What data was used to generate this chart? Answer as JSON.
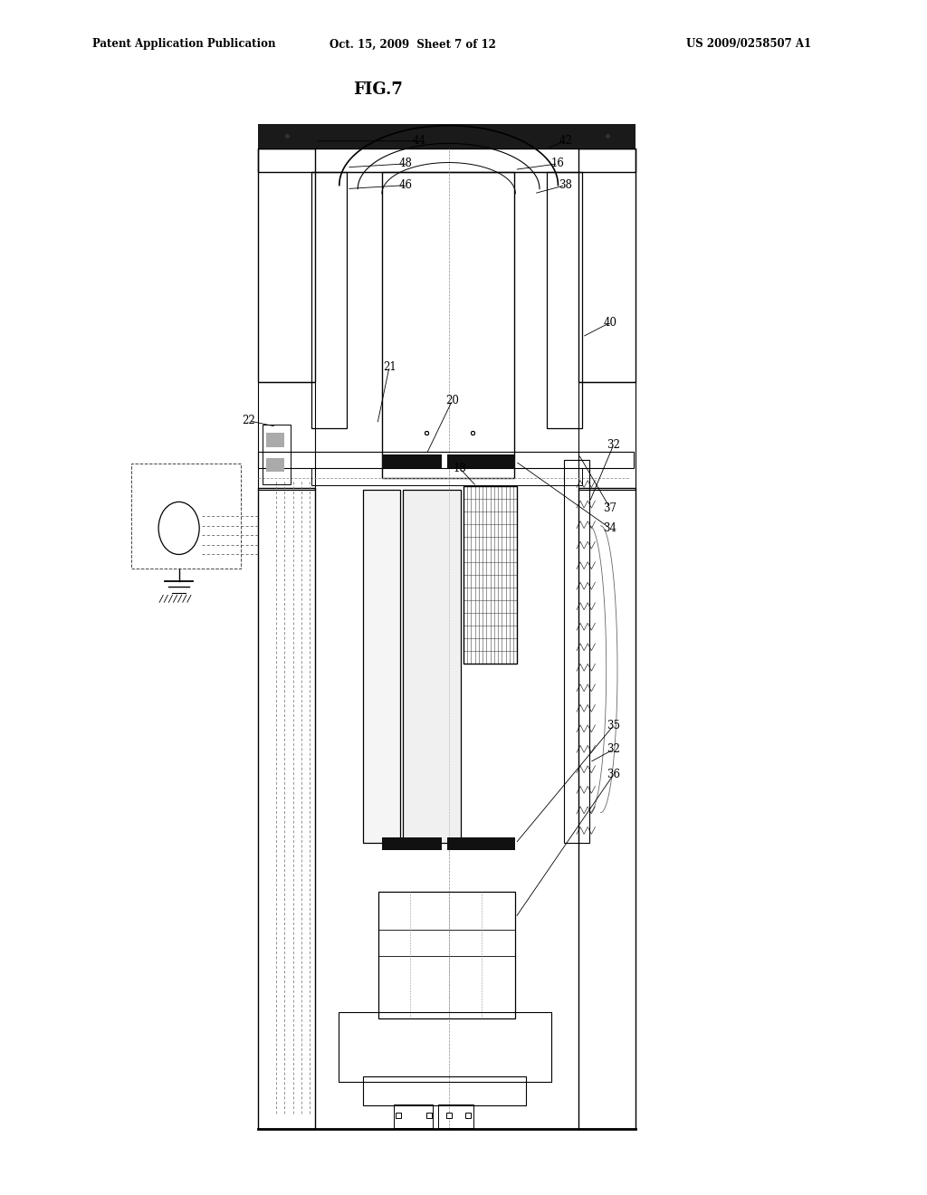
{
  "bg_color": "#ffffff",
  "line_color": "#000000",
  "header_left": "Patent Application Publication",
  "header_mid": "Oct. 15, 2009  Sheet 7 of 12",
  "header_right": "US 2009/0258507 A1",
  "fig_title": "FIG.7"
}
